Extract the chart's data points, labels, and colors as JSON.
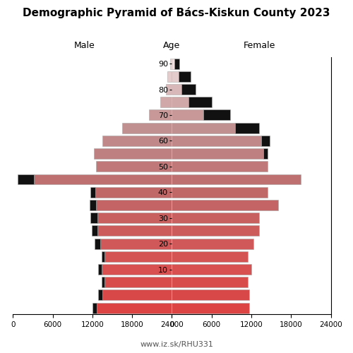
{
  "title": "Demographic Pyramid of Bács-Kiskun County 2023",
  "label_male": "Male",
  "label_female": "Female",
  "label_age": "Age",
  "footer": "www.iz.sk/RHU331",
  "age_tick_positions": [
    19,
    17,
    15,
    13,
    11,
    9,
    7,
    5,
    3
  ],
  "age_tick_labels": [
    "90",
    "80",
    "70",
    "60",
    "50",
    "40",
    "30",
    "20",
    "10"
  ],
  "color_map": [
    "#dc4444",
    "#d84848",
    "#d84c4c",
    "#d85050",
    "#d45454",
    "#d05858",
    "#cc5c5c",
    "#c86060",
    "#c46464",
    "#c06868",
    "#be7070",
    "#c07878",
    "#be8080",
    "#c08888",
    "#c09090",
    "#c89898",
    "#d0a8a8",
    "#d8b8b8",
    "#e4cccc",
    "#f0e0e0"
  ],
  "male_main": [
    11300,
    10500,
    10200,
    10600,
    10200,
    10800,
    11200,
    11200,
    11500,
    11600,
    20800,
    11500,
    11800,
    10500,
    7500,
    3500,
    1800,
    900,
    700,
    300
  ],
  "male_extra": [
    700,
    600,
    400,
    500,
    400,
    900,
    900,
    1100,
    900,
    700,
    2500,
    0,
    0,
    0,
    0,
    0,
    0,
    0,
    0,
    0
  ],
  "female_main": [
    11700,
    11700,
    11500,
    12000,
    11500,
    12300,
    13200,
    13200,
    16000,
    14500,
    19500,
    14500,
    13800,
    13500,
    9500,
    4800,
    2500,
    1400,
    1000,
    400
  ],
  "female_extra": [
    0,
    0,
    0,
    0,
    0,
    0,
    0,
    0,
    0,
    0,
    0,
    0,
    700,
    1300,
    3700,
    4000,
    3500,
    2200,
    1800,
    700
  ],
  "xlim": 24000,
  "bar_height": 0.82,
  "black_color": "#111111",
  "edge_color": "#aaaaaa",
  "bg_color": "#ffffff"
}
